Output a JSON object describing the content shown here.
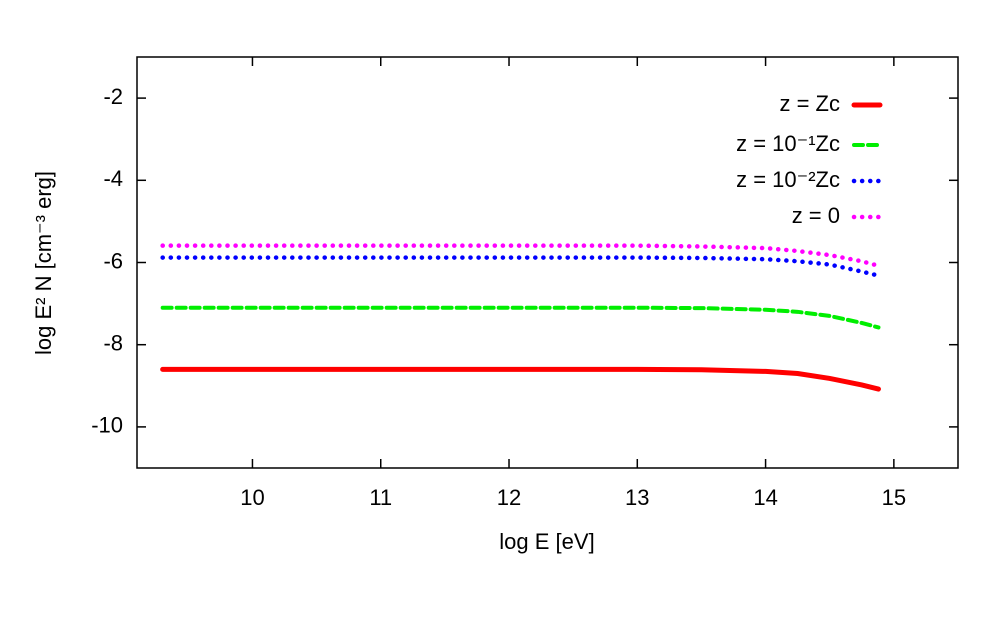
{
  "chart_data": {
    "type": "line",
    "xlabel": "log E [eV]",
    "ylabel": "log E² N [cm⁻³ erg]",
    "xlim": [
      9.1,
      15.5
    ],
    "ylim": [
      -11,
      -1
    ],
    "xticks": [
      10,
      11,
      12,
      13,
      14,
      15
    ],
    "yticks": [
      -2,
      -4,
      -6,
      -8,
      -10
    ],
    "legend": "top-right",
    "x": [
      9.3,
      10,
      11,
      12,
      13,
      13.5,
      14,
      14.25,
      14.5,
      14.75,
      14.88
    ],
    "series": [
      {
        "name": "z = Zc",
        "color": "#ff0000",
        "dash": "solid",
        "values": [
          -8.6,
          -8.6,
          -8.6,
          -8.6,
          -8.6,
          -8.61,
          -8.65,
          -8.7,
          -8.82,
          -8.98,
          -9.08
        ]
      },
      {
        "name": "z = 10⁻¹Zc",
        "color": "#00ee00",
        "dash": "dashed",
        "values": [
          -7.1,
          -7.1,
          -7.1,
          -7.1,
          -7.1,
          -7.11,
          -7.15,
          -7.2,
          -7.3,
          -7.47,
          -7.58
        ]
      },
      {
        "name": "z = 10⁻²Zc",
        "color": "#0000ff",
        "dash": "dotted",
        "values": [
          -5.88,
          -5.88,
          -5.88,
          -5.88,
          -5.88,
          -5.89,
          -5.92,
          -5.97,
          -6.05,
          -6.22,
          -6.32
        ]
      },
      {
        "name": "z = 0",
        "color": "#ff00ff",
        "dash": "dotted",
        "values": [
          -5.59,
          -5.59,
          -5.59,
          -5.59,
          -5.59,
          -5.61,
          -5.65,
          -5.72,
          -5.82,
          -5.97,
          -6.08
        ]
      }
    ]
  }
}
